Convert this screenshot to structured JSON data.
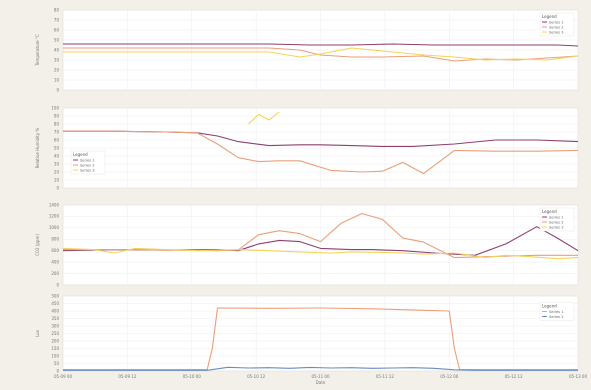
{
  "chart_data": [
    {
      "type": "line",
      "ylabel": "Temperature °C",
      "ylim": [
        0,
        80
      ],
      "yticks": [
        0,
        10,
        20,
        30,
        40,
        50,
        60,
        70,
        80
      ],
      "legend_title": "Legend",
      "legend_position": "top-right",
      "series": [
        {
          "name": "Series 1",
          "color": "#8e3f6e",
          "x": [
            0,
            10,
            20,
            30,
            40,
            48,
            56,
            64,
            72,
            80,
            88,
            96,
            100
          ],
          "y": [
            46,
            46,
            46,
            46,
            46,
            45,
            45,
            46,
            45,
            45,
            45,
            45,
            44
          ]
        },
        {
          "name": "Series 2",
          "color": "#e8a07a",
          "x": [
            0,
            10,
            20,
            30,
            40,
            46,
            50,
            56,
            62,
            70,
            76,
            82,
            88,
            94,
            100
          ],
          "y": [
            42,
            42,
            42,
            42,
            42,
            40,
            35,
            33,
            33,
            34,
            29,
            31,
            30,
            32,
            34
          ]
        },
        {
          "name": "Series 3",
          "color": "#f3d35a",
          "x": [
            0,
            10,
            20,
            30,
            40,
            46,
            50,
            56,
            62,
            70,
            76,
            82,
            88,
            94,
            100
          ],
          "y": [
            38,
            38,
            38,
            38,
            38,
            33,
            36,
            42,
            39,
            35,
            33,
            30,
            31,
            30,
            34
          ]
        }
      ]
    },
    {
      "type": "line",
      "ylabel": "Relative Humidity %",
      "ylim": [
        0,
        100
      ],
      "yticks": [
        0,
        10,
        20,
        30,
        40,
        50,
        60,
        70,
        80,
        90,
        100
      ],
      "legend_title": "Legend",
      "legend_position": "left",
      "series": [
        {
          "name": "Series 1",
          "color": "#8e3f6e",
          "x": [
            0,
            10,
            20,
            26,
            30,
            34,
            40,
            46,
            50,
            56,
            62,
            68,
            76,
            84,
            92,
            100
          ],
          "y": [
            71,
            71,
            70,
            69,
            65,
            58,
            53,
            54,
            54,
            53,
            52,
            52,
            55,
            60,
            60,
            58
          ]
        },
        {
          "name": "Series 2",
          "color": "#e8a07a",
          "x": [
            0,
            10,
            20,
            26,
            30,
            34,
            38,
            42,
            46,
            52,
            58,
            62,
            66,
            70,
            76,
            84,
            92,
            100
          ],
          "y": [
            71,
            71,
            70,
            69,
            55,
            38,
            33,
            34,
            34,
            22,
            20,
            21,
            32,
            18,
            47,
            46,
            46,
            47
          ]
        },
        {
          "name": "Series 3",
          "color": "#f3d35a",
          "x": [
            36,
            38,
            40,
            42
          ],
          "y": [
            80,
            92,
            85,
            95
          ]
        }
      ]
    },
    {
      "type": "line",
      "ylabel": "CO2 (ppm)",
      "ylim": [
        0,
        1400
      ],
      "yticks": [
        0,
        200,
        400,
        600,
        800,
        1000,
        1200,
        1400
      ],
      "legend_title": "Legend",
      "legend_position": "top-right",
      "series": [
        {
          "name": "Series 1",
          "color": "#8e3f6e",
          "x": [
            0,
            10,
            20,
            30,
            34,
            38,
            42,
            46,
            50,
            56,
            60,
            66,
            72,
            80,
            86,
            92,
            96,
            100
          ],
          "y": [
            600,
            620,
            610,
            620,
            600,
            720,
            780,
            760,
            640,
            620,
            620,
            600,
            560,
            520,
            720,
            1020,
            820,
            600
          ]
        },
        {
          "name": "Series 2",
          "color": "#e8a07a",
          "x": [
            0,
            10,
            20,
            30,
            34,
            38,
            42,
            46,
            50,
            54,
            58,
            62,
            66,
            70,
            76,
            84,
            92,
            100
          ],
          "y": [
            620,
            620,
            610,
            600,
            610,
            880,
            950,
            900,
            760,
            1080,
            1250,
            1150,
            820,
            750,
            480,
            500,
            520,
            520
          ]
        },
        {
          "name": "Series 3",
          "color": "#f3d35a",
          "x": [
            0,
            6,
            10,
            14,
            20,
            26,
            30,
            34,
            40,
            46,
            52,
            56,
            62,
            66,
            70,
            76,
            82,
            86,
            90,
            96,
            100
          ],
          "y": [
            640,
            620,
            560,
            640,
            620,
            600,
            610,
            620,
            600,
            580,
            560,
            580,
            570,
            560,
            540,
            560,
            480,
            520,
            500,
            460,
            480
          ]
        }
      ]
    },
    {
      "type": "line",
      "ylabel": "Lux",
      "ylim": [
        0,
        500
      ],
      "yticks": [
        0,
        50,
        100,
        150,
        200,
        250,
        300,
        350,
        400,
        450,
        500
      ],
      "xlabel": "Date",
      "xticks": [
        "05-09 00",
        "05-09 12",
        "05-10 00",
        "05-10 12",
        "05-11 00",
        "05-11 12",
        "05-12 00",
        "05-12 12",
        "05-13 00"
      ],
      "legend_title": "Legend",
      "legend_position": "right",
      "series": [
        {
          "name": "Series 1",
          "color": "#e8a07a",
          "x": [
            0,
            10,
            20,
            28,
            29,
            30,
            40,
            50,
            60,
            70,
            75,
            76,
            77,
            80,
            90,
            100
          ],
          "y": [
            10,
            10,
            10,
            10,
            150,
            420,
            418,
            420,
            415,
            405,
            400,
            150,
            10,
            10,
            10,
            10
          ]
        },
        {
          "name": "Series 2",
          "color": "#6a8cc0",
          "x": [
            0,
            10,
            20,
            28,
            30,
            32,
            36,
            40,
            44,
            48,
            52,
            56,
            60,
            64,
            68,
            72,
            76,
            80,
            90,
            100
          ],
          "y": [
            5,
            5,
            5,
            5,
            15,
            25,
            20,
            22,
            18,
            24,
            20,
            22,
            18,
            20,
            22,
            18,
            8,
            5,
            5,
            5
          ]
        }
      ]
    }
  ]
}
